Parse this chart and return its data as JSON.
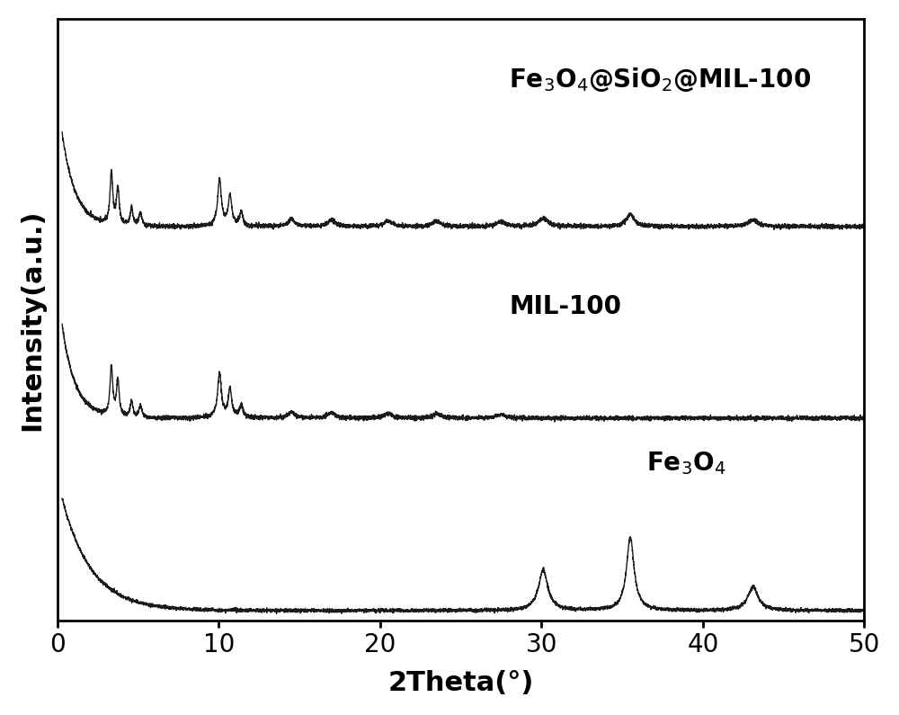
{
  "xlabel": "2Theta(°)",
  "ylabel": "Intensity(a.u.)",
  "xlim": [
    0,
    50
  ],
  "line_color": "#1a1a1a",
  "background_color": "#ffffff",
  "label_fontsize": 22,
  "tick_fontsize": 20,
  "annotation_fontsize": 20,
  "labels": {
    "fe3o4_sio2_mil100": "Fe$_3$O$_4$@SiO$_2$@MIL-100",
    "mil100": "MIL-100",
    "fe3o4": "Fe$_3$O$_4$"
  },
  "offsets": {
    "fe3o4_sio2_mil100": 2.2,
    "mil100": 1.1,
    "fe3o4": 0.0
  },
  "scales": {
    "fe3o4_sio2_mil100": 0.55,
    "mil100": 0.55,
    "fe3o4": 0.65
  },
  "ylim": [
    -0.05,
    3.4
  ],
  "ann_positions": {
    "fe3o4_sio2_mil100": [
      28.0,
      3.05
    ],
    "mil100": [
      28.0,
      1.75
    ],
    "fe3o4": [
      36.5,
      0.85
    ]
  }
}
